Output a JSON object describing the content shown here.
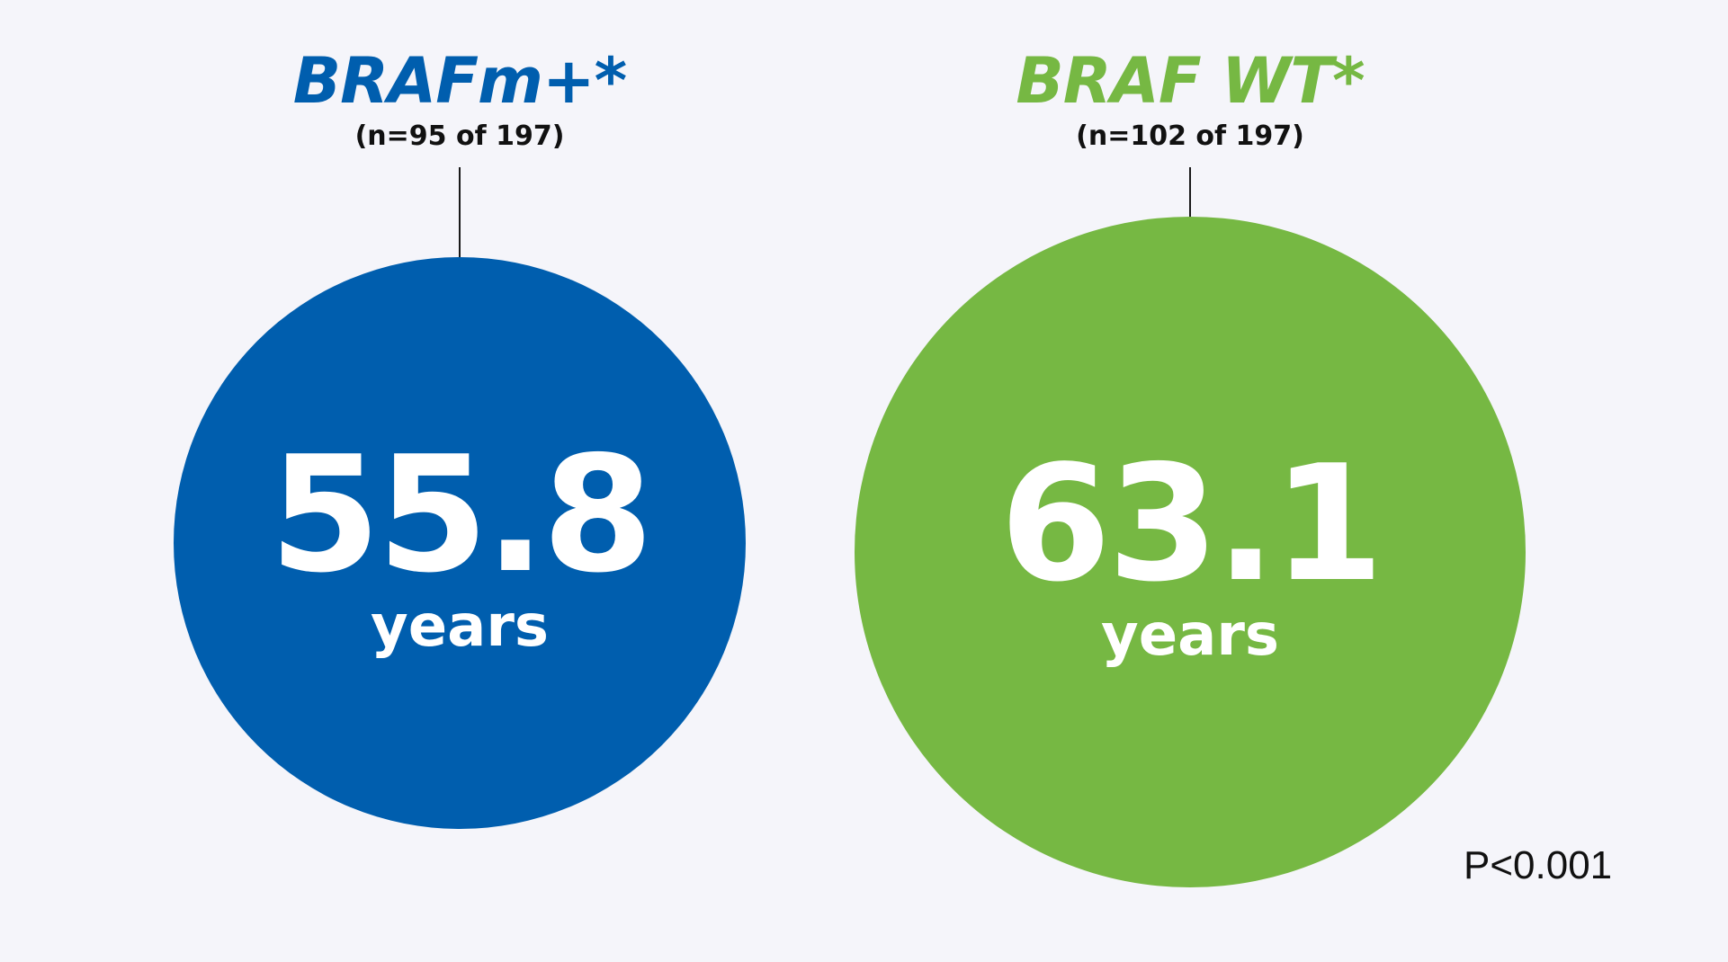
{
  "chart_data": {
    "type": "bubble",
    "series": [
      {
        "name": "BRAFm+*",
        "n_label": "(n=95 of 197)",
        "n": 95,
        "total": 197,
        "value": 55.8,
        "value_label": "55.8",
        "unit": "years",
        "color": "#005eae"
      },
      {
        "name": "BRAF WT*",
        "n_label": "(n=102 of 197)",
        "n": 102,
        "total": 197,
        "value": 63.1,
        "value_label": "63.1",
        "unit": "years",
        "color": "#76b843"
      }
    ],
    "annotation": "P<0.001"
  }
}
